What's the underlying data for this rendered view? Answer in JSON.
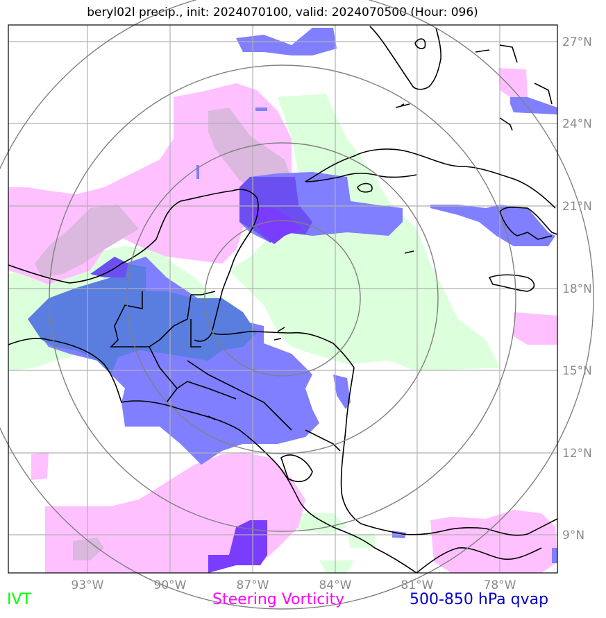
{
  "title": "beryl02l precip., init: 2024070100, valid: 2024070500 (Hour: 096)",
  "axes": {
    "lon_ticks": [
      "93°W",
      "90°W",
      "87°W",
      "84°W",
      "81°W",
      "78°W"
    ],
    "lat_ticks": [
      "27°N",
      "24°N",
      "21°N",
      "18°N",
      "15°N",
      "12°N",
      "9°N"
    ],
    "lon_range": [
      -95.8,
      -75.8
    ],
    "lat_range": [
      7.9,
      27.9
    ]
  },
  "legend": [
    {
      "label": "IVT",
      "color": "#00ff00"
    },
    {
      "label": "Steering Vorticity",
      "color": "#ff00ff"
    },
    {
      "label": "500-850 hPa qvap",
      "color": "#0000cc"
    }
  ],
  "fields": {
    "ivt_color": "#dcffdc",
    "vorticity_color": "#ffc0ff",
    "vorticity_overlap_color": "#dbb8dd",
    "qvap_color": "#7f7fff",
    "qvap_overlap_color": "#5a7de0",
    "qvap_strong_color": "#7a3cff"
  },
  "range_rings": {
    "center": [
      -85.7,
      18.2
    ],
    "count": 4
  }
}
